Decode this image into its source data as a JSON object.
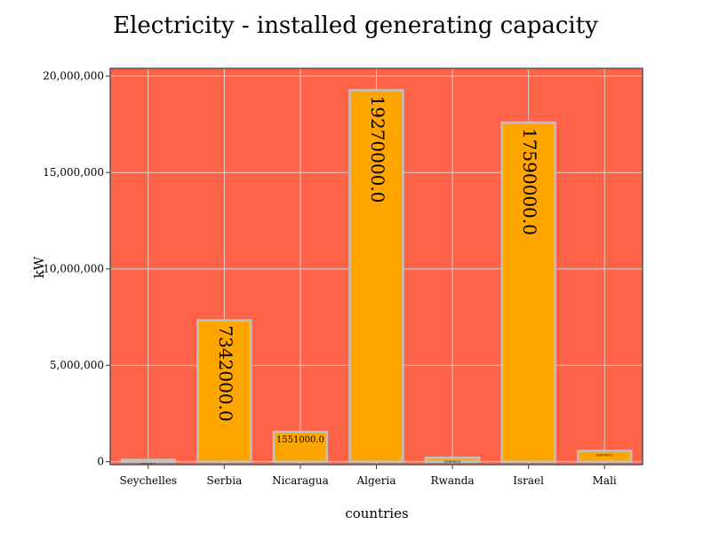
{
  "chart_data": {
    "type": "bar",
    "title": "Electricity - installed generating capacity",
    "xlabel": "countries",
    "ylabel": "kW",
    "categories": [
      "Seychelles",
      "Serbia",
      "Nicaragua",
      "Algeria",
      "Rwanda",
      "Israel",
      "Mali"
    ],
    "values": [
      95000,
      7342000,
      1551000,
      19270000,
      208000,
      17590000,
      560000
    ],
    "data_labels": [
      "95000.0",
      "7342000.0",
      "1551000.0",
      "19270000.0",
      "208000.0",
      "17590000.0",
      "560000.0"
    ],
    "ylim": [
      -150000,
      20400000
    ],
    "yticks": [
      0,
      5000000,
      10000000,
      15000000,
      20000000
    ],
    "ytick_labels": [
      "0",
      "5,000,000",
      "10,000,000",
      "15,000,000",
      "20,000,000"
    ],
    "grid": true,
    "colors": {
      "plot_background": "#ff6347",
      "bar_fill": "#ffa500",
      "bar_edge": "#c0c0c0",
      "gridline": "#d3d3d3",
      "frame": "#555555"
    }
  }
}
